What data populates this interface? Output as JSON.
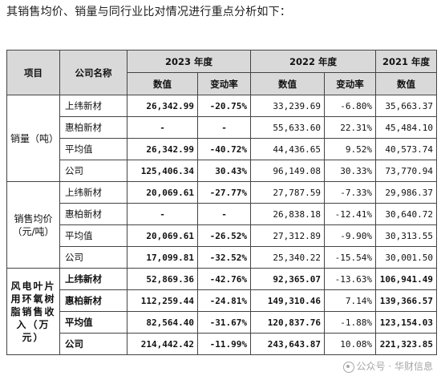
{
  "intro": "其销售均价、销量与同行业比对情况进行重点分析如下：",
  "headers": {
    "item": "项目",
    "company": "公司名称",
    "y2023": "2023 年度",
    "y2022": "2022 年度",
    "y2021": "2021 年度",
    "value": "数值",
    "change": "变动率"
  },
  "sections": [
    {
      "category": "销量（吨）",
      "bold": false,
      "rows": [
        {
          "company": "上纬新材",
          "v23": "26,342.99",
          "c23": "-20.75%",
          "v22": "33,239.69",
          "c22": "-6.80%",
          "v21": "35,663.37"
        },
        {
          "company": "惠柏新材",
          "v23": "-",
          "c23": "-",
          "v22": "55,633.60",
          "c22": "22.31%",
          "v21": "45,484.10"
        },
        {
          "company": "平均值",
          "v23": "26,342.99",
          "c23": "-40.72%",
          "v22": "44,436.65",
          "c22": "9.52%",
          "v21": "40,573.74"
        },
        {
          "company": "公司",
          "v23": "125,406.34",
          "c23": "30.43%",
          "v22": "96,149.08",
          "c22": "30.33%",
          "v21": "73,770.94"
        }
      ]
    },
    {
      "category": "销售均价（元/吨）",
      "bold": false,
      "rows": [
        {
          "company": "上纬新材",
          "v23": "20,069.61",
          "c23": "-27.77%",
          "v22": "27,787.59",
          "c22": "-7.33%",
          "v21": "29,986.37"
        },
        {
          "company": "惠柏新材",
          "v23": "-",
          "c23": "-",
          "v22": "26,838.18",
          "c22": "-12.41%",
          "v21": "30,640.72"
        },
        {
          "company": "平均值",
          "v23": "20,069.61",
          "c23": "-26.52%",
          "v22": "27,312.89",
          "c22": "-9.90%",
          "v21": "30,313.55"
        },
        {
          "company": "公司",
          "v23": "17,099.81",
          "c23": "-32.52%",
          "v22": "25,340.22",
          "c22": "-15.54%",
          "v21": "30,001.50"
        }
      ]
    },
    {
      "category": "风电叶片用环氧树脂销售收入（万元）",
      "bold": true,
      "rows": [
        {
          "company": "上纬新材",
          "v23": "52,869.36",
          "c23": "-42.76%",
          "v22": "92,365.07",
          "c22": "-13.63%",
          "v21": "106,941.49"
        },
        {
          "company": "惠柏新材",
          "v23": "112,259.44",
          "c23": "-24.81%",
          "v22": "149,310.46",
          "c22": "7.14%",
          "v21": "139,366.57"
        },
        {
          "company": "平均值",
          "v23": "82,564.40",
          "c23": "-31.67%",
          "v22": "120,837.76",
          "c22": "-1.88%",
          "v21": "123,154.03"
        },
        {
          "company": "公司",
          "v23": "214,442.42",
          "c23": "-11.99%",
          "v22": "243,643.87",
          "c22": "10.08%",
          "v21": "221,323.85"
        }
      ]
    }
  ],
  "watermark": "公众号 · 华财信息"
}
